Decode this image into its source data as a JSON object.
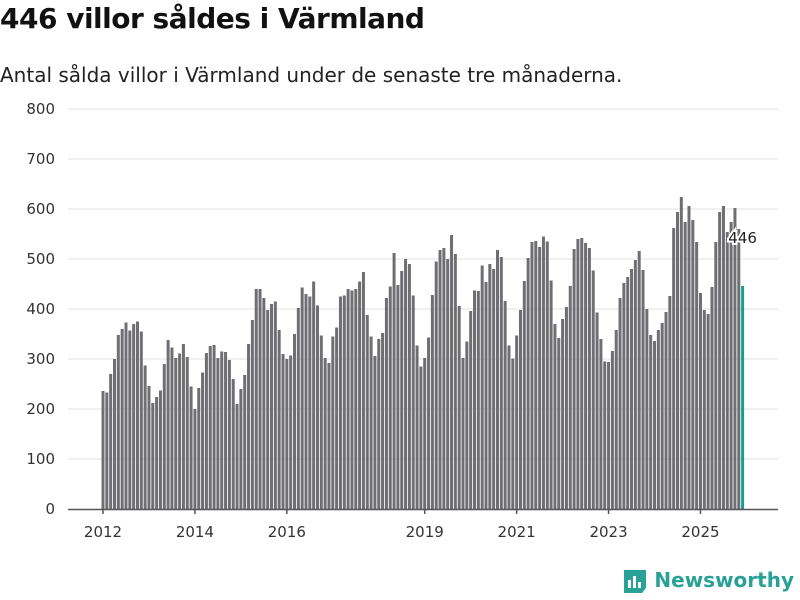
{
  "title": "446 villor såldes i Värmland",
  "subtitle": "Antal sålda villor i Värmland under de senaste tre månaderna.",
  "logo": {
    "text": "Newsworthy"
  },
  "colors": {
    "bar": "#6f6e73",
    "highlight": "#1a9c95",
    "grid": "#e2e2e2",
    "axis": "#555555"
  },
  "chart_data": {
    "type": "bar",
    "title": "446 villor såldes i Värmland",
    "xlabel": "",
    "ylabel": "",
    "ylim": [
      0,
      800
    ],
    "yticks": [
      0,
      100,
      200,
      300,
      400,
      500,
      600,
      700,
      800
    ],
    "xticks": [
      2012,
      2014,
      2016,
      2019,
      2021,
      2023,
      2025
    ],
    "start": "2012-01",
    "frequency": "monthly",
    "grid": true,
    "highlight_label": "446",
    "values": [
      236,
      233,
      270,
      300,
      348,
      360,
      373,
      357,
      370,
      375,
      355,
      287,
      246,
      212,
      224,
      237,
      290,
      338,
      323,
      302,
      311,
      330,
      304,
      245,
      200,
      242,
      273,
      312,
      326,
      328,
      302,
      315,
      314,
      298,
      260,
      210,
      240,
      268,
      330,
      378,
      440,
      440,
      422,
      398,
      410,
      415,
      358,
      310,
      300,
      307,
      350,
      402,
      443,
      430,
      425,
      455,
      407,
      347,
      302,
      292,
      345,
      363,
      425,
      427,
      440,
      437,
      440,
      455,
      474,
      388,
      345,
      306,
      340,
      352,
      422,
      445,
      512,
      448,
      476,
      500,
      490,
      427,
      327,
      285,
      302,
      343,
      428,
      495,
      518,
      522,
      500,
      548,
      510,
      406,
      302,
      335,
      396,
      437,
      436,
      487,
      454,
      490,
      480,
      518,
      504,
      416,
      327,
      301,
      347,
      398,
      456,
      502,
      534,
      536,
      524,
      545,
      535,
      457,
      370,
      342,
      380,
      404,
      446,
      520,
      540,
      542,
      532,
      522,
      477,
      393,
      340,
      295,
      294,
      316,
      358,
      422,
      452,
      464,
      480,
      498,
      516,
      478,
      400,
      348,
      336,
      358,
      372,
      394,
      426,
      562,
      594,
      624,
      574,
      606,
      578,
      534,
      432,
      398,
      390,
      444,
      534,
      594,
      606,
      554,
      574,
      602,
      560,
      446
    ]
  }
}
